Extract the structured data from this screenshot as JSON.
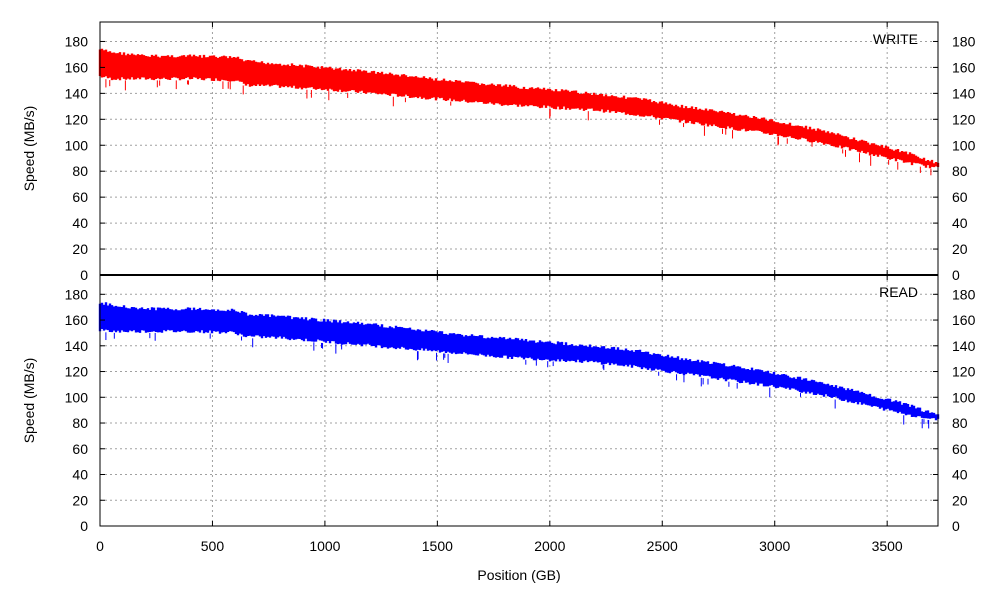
{
  "chart_data": [
    {
      "type": "area",
      "title": "",
      "legend": "WRITE",
      "color": "#ff0000",
      "ylabel": "Speed (MB/s)",
      "xlabel": "",
      "xlim": [
        0,
        3726
      ],
      "ylim": [
        0,
        195
      ],
      "yticks": [
        0,
        20,
        40,
        60,
        80,
        100,
        120,
        140,
        160,
        180
      ],
      "grid": true,
      "series": [
        {
          "x": [
            0,
            50,
            200,
            400,
            600,
            650,
            800,
            1000,
            1200,
            1400,
            1600,
            1800,
            2000,
            2200,
            2400,
            2600,
            2800,
            3000,
            3200,
            3400,
            3600,
            3726
          ],
          "low": [
            152,
            150,
            150,
            150,
            149,
            145,
            144,
            142,
            139,
            136,
            133,
            130,
            128,
            126,
            122,
            117,
            112,
            107,
            101,
            93,
            85,
            81
          ],
          "high": [
            175,
            173,
            170,
            170,
            169,
            166,
            164,
            161,
            158,
            154,
            150,
            147,
            144,
            141,
            137,
            131,
            126,
            120,
            113,
            104,
            95,
            87
          ]
        }
      ]
    },
    {
      "type": "area",
      "title": "",
      "legend": "READ",
      "color": "#0000ff",
      "ylabel": "Speed (MB/s)",
      "xlabel": "Position (GB)",
      "xlim": [
        0,
        3726
      ],
      "ylim": [
        0,
        195
      ],
      "xticks": [
        0,
        500,
        1000,
        1500,
        2000,
        2500,
        3000,
        3500
      ],
      "yticks": [
        0,
        20,
        40,
        60,
        80,
        100,
        120,
        140,
        160,
        180
      ],
      "grid": true,
      "series": [
        {
          "x": [
            0,
            50,
            200,
            400,
            600,
            650,
            800,
            1000,
            1200,
            1400,
            1600,
            1800,
            2000,
            2200,
            2400,
            2600,
            2800,
            3000,
            3200,
            3400,
            3600,
            3726
          ],
          "low": [
            151,
            150,
            150,
            150,
            149,
            146,
            145,
            142,
            139,
            136,
            133,
            130,
            128,
            126,
            122,
            117,
            112,
            107,
            101,
            93,
            85,
            81
          ],
          "high": [
            175,
            173,
            170,
            170,
            169,
            166,
            164,
            161,
            158,
            154,
            150,
            147,
            144,
            141,
            137,
            131,
            126,
            120,
            113,
            104,
            95,
            87
          ]
        }
      ]
    }
  ]
}
